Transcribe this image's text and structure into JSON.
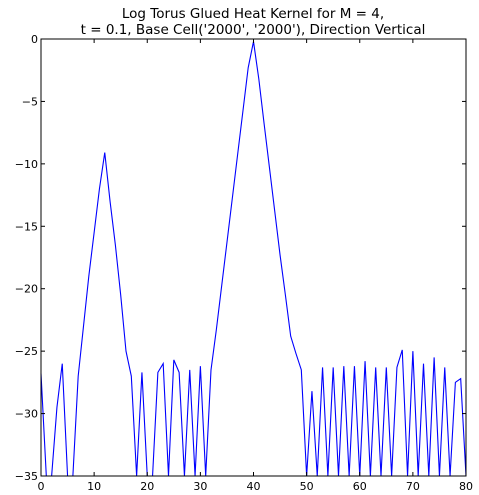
{
  "chart_data": {
    "type": "line",
    "title_lines": [
      "Log Torus Glued Heat Kernel for M = 4,",
      "t = 0.1, Base Cell('2000', '2000'), Direction Vertical"
    ],
    "xlabel": "",
    "ylabel": "",
    "xlim": [
      0,
      80
    ],
    "ylim": [
      -35,
      0
    ],
    "xticks": [
      0,
      10,
      20,
      30,
      40,
      50,
      60,
      70,
      80
    ],
    "yticks": [
      0,
      -5,
      -10,
      -15,
      -20,
      -25,
      -30,
      -35
    ],
    "grid": false,
    "series": [
      {
        "color": "#0000ff",
        "x": [
          0,
          1,
          2,
          3,
          4,
          5,
          6,
          7,
          8,
          9,
          10,
          11,
          12,
          13,
          14,
          15,
          16,
          17,
          18,
          19,
          20,
          21,
          22,
          23,
          24,
          25,
          26,
          27,
          28,
          29,
          30,
          31,
          32,
          33,
          34,
          35,
          36,
          37,
          38,
          39,
          40,
          41,
          42,
          43,
          44,
          45,
          46,
          47,
          48,
          49,
          50,
          51,
          52,
          53,
          54,
          55,
          56,
          57,
          58,
          59,
          60,
          61,
          62,
          63,
          64,
          65,
          66,
          67,
          68,
          69,
          70,
          71,
          72,
          73,
          74,
          75,
          76,
          77,
          78,
          79,
          80
        ],
        "y": [
          -26.8,
          -35,
          -35,
          -29.5,
          -26,
          -35,
          -35,
          -27,
          -23,
          -19,
          -15.5,
          -12,
          -9.1,
          -13,
          -16.5,
          -20.5,
          -25,
          -27,
          -35,
          -26.7,
          -35,
          -35,
          -26.7,
          -26,
          -35,
          -25.7,
          -26.7,
          -35,
          -26.5,
          -35,
          -26.2,
          -35,
          -26.5,
          -23.3,
          -19.8,
          -16.3,
          -12.8,
          -9.3,
          -5.8,
          -2.3,
          -0.2,
          -3.2,
          -6.8,
          -10.3,
          -13.8,
          -17.3,
          -20.5,
          -23.8,
          -25.2,
          -26.5,
          -35,
          -28.2,
          -35,
          -26.3,
          -35,
          -26.3,
          -35,
          -26.2,
          -35,
          -26.2,
          -35,
          -25.8,
          -35,
          -26.3,
          -35,
          -26.3,
          -35,
          -26.3,
          -24.9,
          -35,
          -25,
          -35,
          -26,
          -35,
          -25.5,
          -35,
          -26.3,
          -35,
          -27.5,
          -27.2,
          -35
        ]
      }
    ]
  }
}
